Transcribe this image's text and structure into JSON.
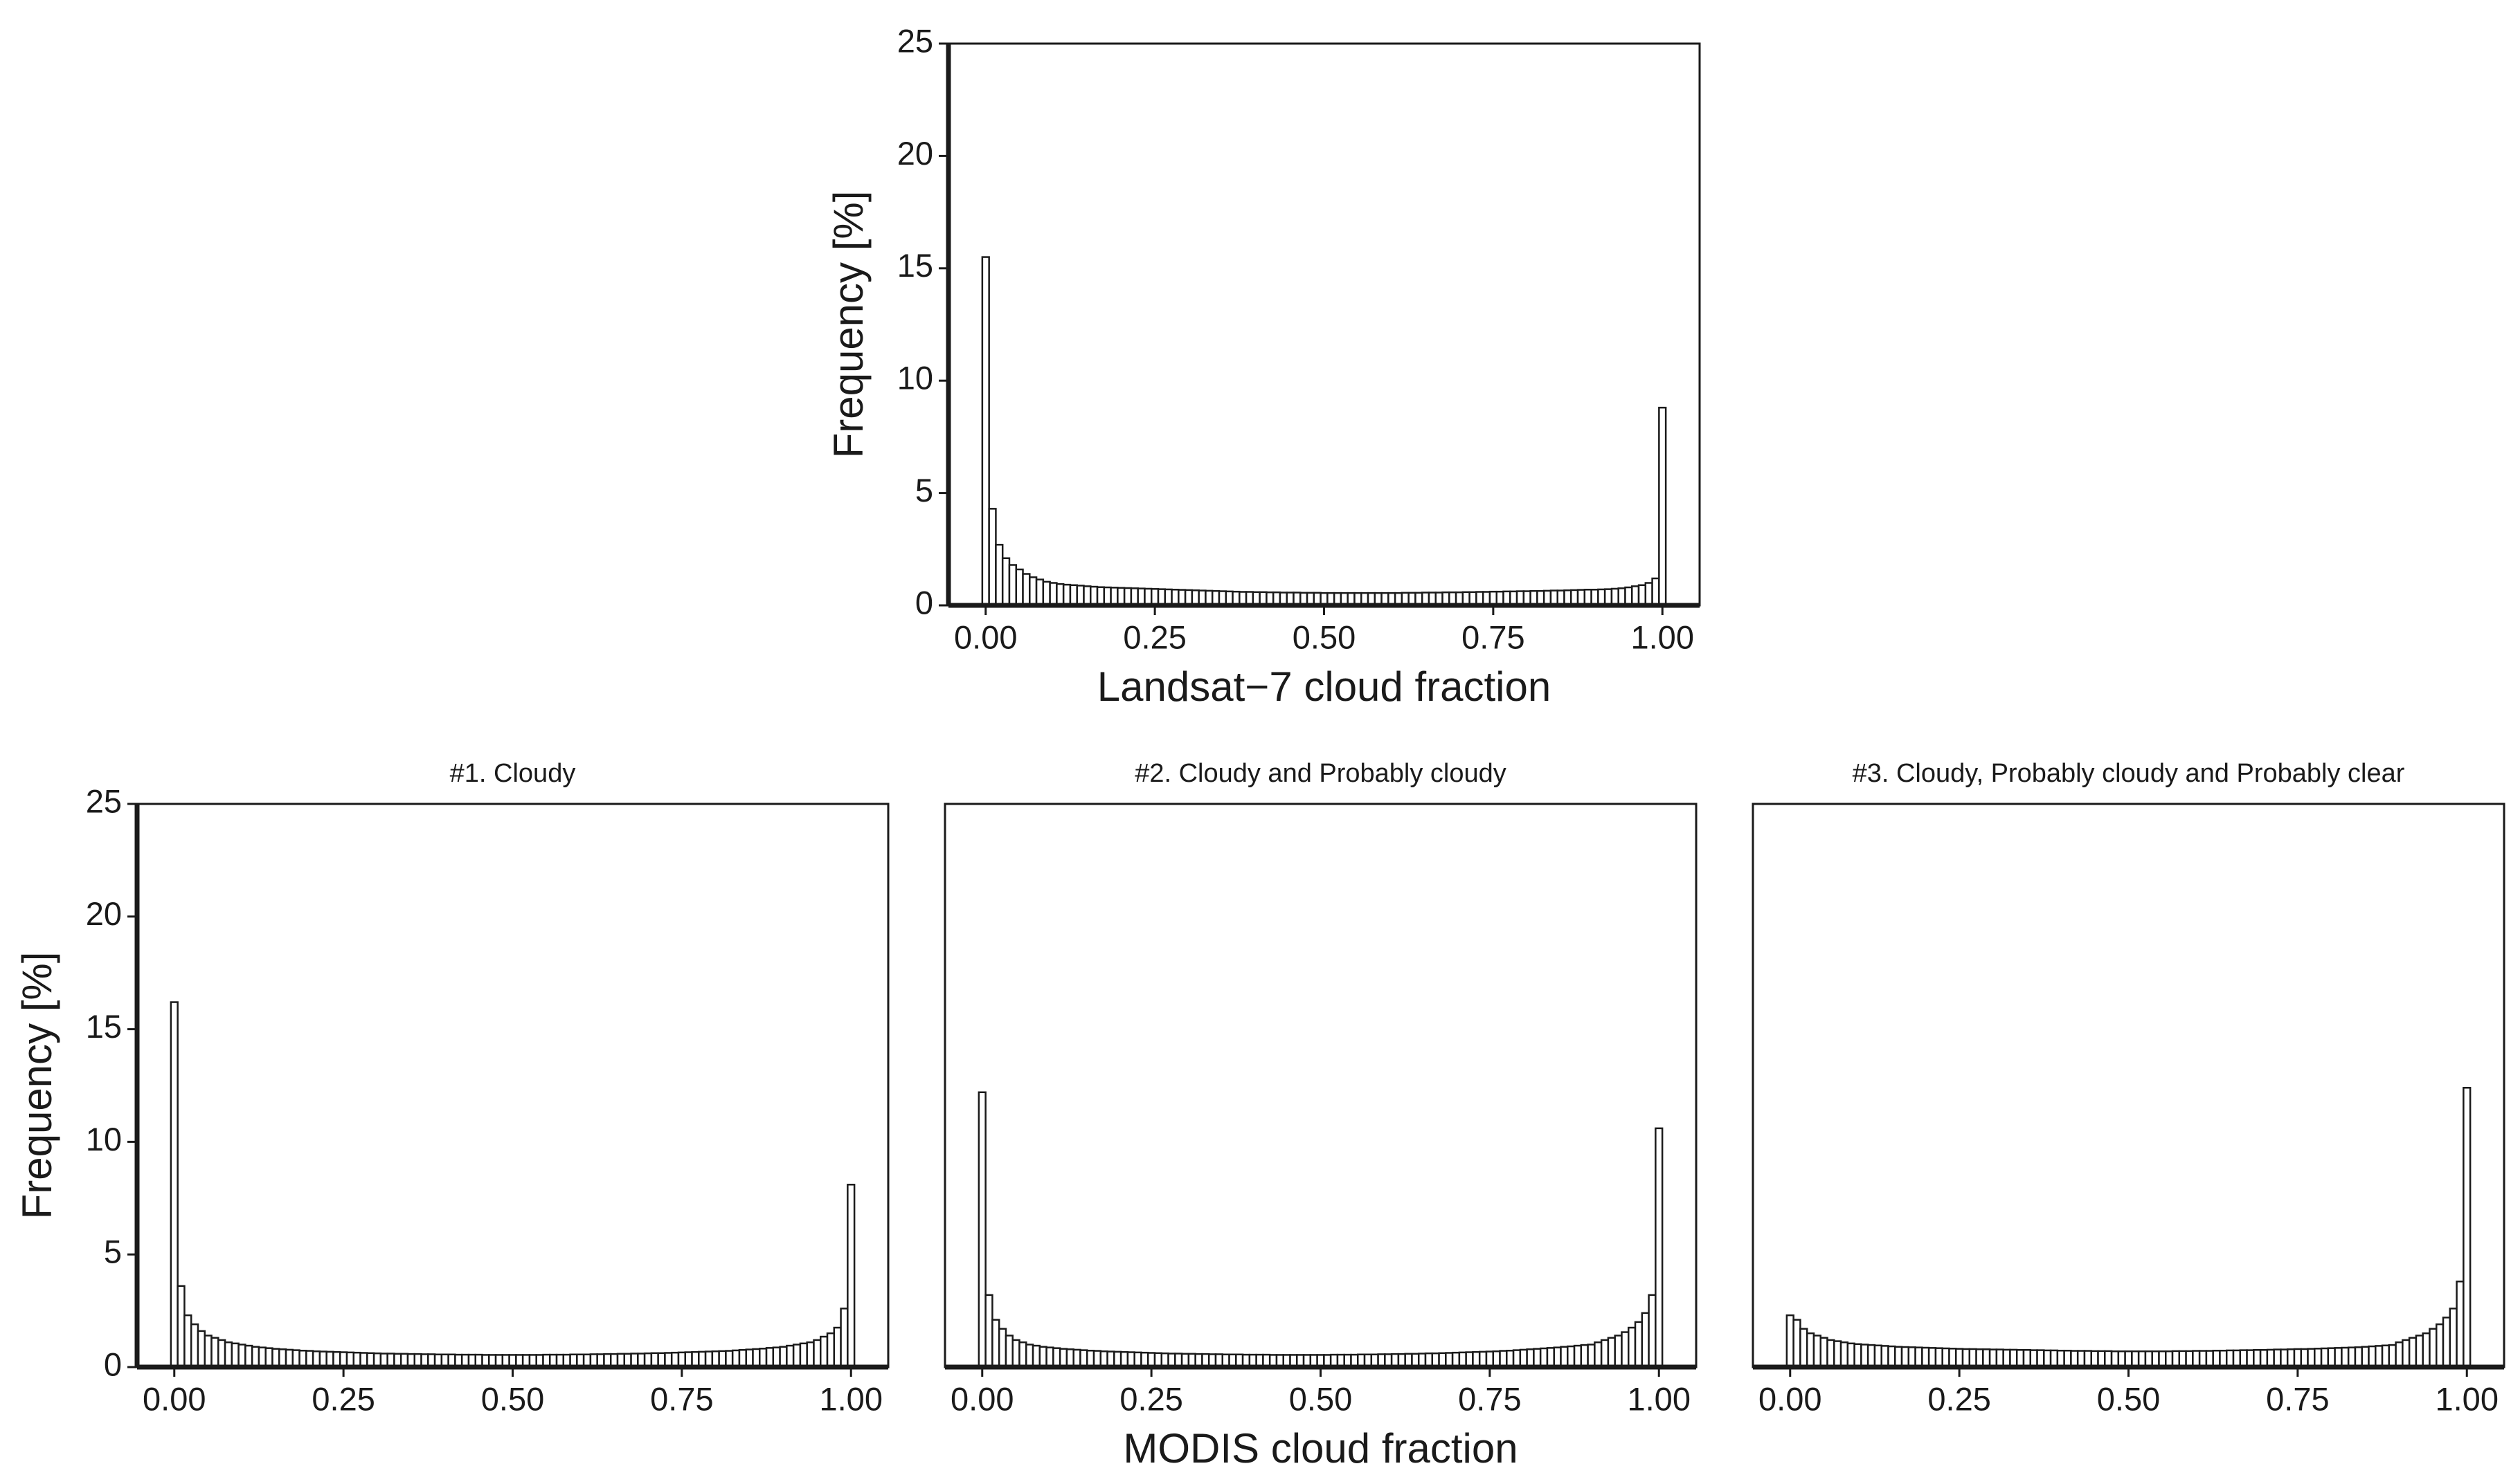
{
  "chart_data": [
    {
      "type": "histogram",
      "xlabel": "Landsat−7 cloud fraction",
      "ylabel": "Frequency [%]",
      "bins": [
        -0.005,
        0.005,
        0.015,
        0.025,
        0.035,
        0.045,
        0.055,
        0.065,
        0.075,
        0.085,
        0.095,
        0.105,
        0.115,
        0.125,
        0.135,
        0.145,
        0.155,
        0.165,
        0.175,
        0.185,
        0.195,
        0.205,
        0.215,
        0.225,
        0.235,
        0.245,
        0.255,
        0.265,
        0.275,
        0.285,
        0.295,
        0.305,
        0.315,
        0.325,
        0.335,
        0.345,
        0.355,
        0.365,
        0.375,
        0.385,
        0.395,
        0.405,
        0.415,
        0.425,
        0.435,
        0.445,
        0.455,
        0.465,
        0.475,
        0.485,
        0.495,
        0.505,
        0.515,
        0.525,
        0.535,
        0.545,
        0.555,
        0.565,
        0.575,
        0.585,
        0.595,
        0.605,
        0.615,
        0.625,
        0.635,
        0.645,
        0.655,
        0.665,
        0.675,
        0.685,
        0.695,
        0.705,
        0.715,
        0.725,
        0.735,
        0.745,
        0.755,
        0.765,
        0.775,
        0.785,
        0.795,
        0.805,
        0.815,
        0.825,
        0.835,
        0.845,
        0.855,
        0.865,
        0.875,
        0.885,
        0.895,
        0.905,
        0.915,
        0.925,
        0.935,
        0.945,
        0.955,
        0.965,
        0.975,
        0.985,
        0.995,
        1.005
      ],
      "values": [
        15.5,
        4.3,
        2.7,
        2.1,
        1.8,
        1.6,
        1.4,
        1.25,
        1.15,
        1.05,
        1.0,
        0.95,
        0.92,
        0.9,
        0.88,
        0.85,
        0.83,
        0.81,
        0.8,
        0.79,
        0.78,
        0.77,
        0.76,
        0.75,
        0.74,
        0.73,
        0.72,
        0.71,
        0.7,
        0.69,
        0.68,
        0.67,
        0.66,
        0.65,
        0.64,
        0.63,
        0.62,
        0.61,
        0.6,
        0.6,
        0.59,
        0.59,
        0.58,
        0.58,
        0.57,
        0.57,
        0.57,
        0.56,
        0.56,
        0.56,
        0.55,
        0.55,
        0.55,
        0.55,
        0.55,
        0.55,
        0.55,
        0.55,
        0.55,
        0.55,
        0.55,
        0.55,
        0.56,
        0.56,
        0.56,
        0.57,
        0.57,
        0.57,
        0.58,
        0.58,
        0.58,
        0.59,
        0.59,
        0.6,
        0.6,
        0.61,
        0.61,
        0.62,
        0.62,
        0.63,
        0.63,
        0.64,
        0.64,
        0.65,
        0.66,
        0.66,
        0.67,
        0.68,
        0.69,
        0.7,
        0.7,
        0.71,
        0.72,
        0.74,
        0.76,
        0.8,
        0.85,
        0.9,
        1.0,
        1.2,
        8.8
      ],
      "color": "#ffffff",
      "xlim": [
        -0.055,
        1.055
      ],
      "ylim": [
        0,
        25
      ],
      "xticks": [
        {
          "value": 0,
          "label": "0.00"
        },
        {
          "value": 0.25,
          "label": "0.25"
        },
        {
          "value": 0.5,
          "label": "0.50"
        },
        {
          "value": 0.75,
          "label": "0.75"
        },
        {
          "value": 1,
          "label": "1.00"
        }
      ],
      "yticks": [
        0,
        5,
        10,
        15,
        20,
        25
      ]
    },
    {
      "type": "histogram",
      "title": "#1. Cloudy",
      "ylabel": "Frequency [%]",
      "bins": [
        -0.005,
        0.005,
        0.015,
        0.025,
        0.035,
        0.045,
        0.055,
        0.065,
        0.075,
        0.085,
        0.095,
        0.105,
        0.115,
        0.125,
        0.135,
        0.145,
        0.155,
        0.165,
        0.175,
        0.185,
        0.195,
        0.205,
        0.215,
        0.225,
        0.235,
        0.245,
        0.255,
        0.265,
        0.275,
        0.285,
        0.295,
        0.305,
        0.315,
        0.325,
        0.335,
        0.345,
        0.355,
        0.365,
        0.375,
        0.385,
        0.395,
        0.405,
        0.415,
        0.425,
        0.435,
        0.445,
        0.455,
        0.465,
        0.475,
        0.485,
        0.495,
        0.505,
        0.515,
        0.525,
        0.535,
        0.545,
        0.555,
        0.565,
        0.575,
        0.585,
        0.595,
        0.605,
        0.615,
        0.625,
        0.635,
        0.645,
        0.655,
        0.665,
        0.675,
        0.685,
        0.695,
        0.705,
        0.715,
        0.725,
        0.735,
        0.745,
        0.755,
        0.765,
        0.775,
        0.785,
        0.795,
        0.805,
        0.815,
        0.825,
        0.835,
        0.845,
        0.855,
        0.865,
        0.875,
        0.885,
        0.895,
        0.905,
        0.915,
        0.925,
        0.935,
        0.945,
        0.955,
        0.965,
        0.975,
        0.985,
        0.995,
        1.005
      ],
      "values": [
        16.2,
        3.6,
        2.3,
        1.9,
        1.6,
        1.4,
        1.3,
        1.2,
        1.1,
        1.05,
        1.0,
        0.95,
        0.9,
        0.87,
        0.84,
        0.81,
        0.79,
        0.77,
        0.75,
        0.73,
        0.72,
        0.7,
        0.69,
        0.68,
        0.67,
        0.66,
        0.65,
        0.64,
        0.63,
        0.62,
        0.61,
        0.6,
        0.6,
        0.59,
        0.59,
        0.58,
        0.58,
        0.57,
        0.57,
        0.56,
        0.56,
        0.56,
        0.55,
        0.55,
        0.55,
        0.55,
        0.54,
        0.54,
        0.54,
        0.54,
        0.54,
        0.54,
        0.54,
        0.54,
        0.54,
        0.55,
        0.55,
        0.55,
        0.55,
        0.56,
        0.56,
        0.56,
        0.57,
        0.57,
        0.58,
        0.58,
        0.59,
        0.59,
        0.6,
        0.6,
        0.61,
        0.62,
        0.62,
        0.63,
        0.64,
        0.65,
        0.66,
        0.67,
        0.68,
        0.69,
        0.7,
        0.71,
        0.72,
        0.74,
        0.76,
        0.78,
        0.8,
        0.82,
        0.85,
        0.87,
        0.9,
        0.95,
        1.0,
        1.05,
        1.1,
        1.2,
        1.35,
        1.5,
        1.75,
        2.6,
        8.1
      ],
      "color": "#ffffff",
      "xlim": [
        -0.055,
        1.055
      ],
      "ylim": [
        0,
        25
      ],
      "xticks": [
        {
          "value": 0,
          "label": "0.00"
        },
        {
          "value": 0.25,
          "label": "0.25"
        },
        {
          "value": 0.5,
          "label": "0.50"
        },
        {
          "value": 0.75,
          "label": "0.75"
        },
        {
          "value": 1,
          "label": "1.00"
        }
      ],
      "yticks": [
        0,
        5,
        10,
        15,
        20,
        25
      ]
    },
    {
      "type": "histogram",
      "title": "#2. Cloudy and Probably cloudy",
      "xlabel": "MODIS cloud fraction",
      "bins": [
        -0.005,
        0.005,
        0.015,
        0.025,
        0.035,
        0.045,
        0.055,
        0.065,
        0.075,
        0.085,
        0.095,
        0.105,
        0.115,
        0.125,
        0.135,
        0.145,
        0.155,
        0.165,
        0.175,
        0.185,
        0.195,
        0.205,
        0.215,
        0.225,
        0.235,
        0.245,
        0.255,
        0.265,
        0.275,
        0.285,
        0.295,
        0.305,
        0.315,
        0.325,
        0.335,
        0.345,
        0.355,
        0.365,
        0.375,
        0.385,
        0.395,
        0.405,
        0.415,
        0.425,
        0.435,
        0.445,
        0.455,
        0.465,
        0.475,
        0.485,
        0.495,
        0.505,
        0.515,
        0.525,
        0.535,
        0.545,
        0.555,
        0.565,
        0.575,
        0.585,
        0.595,
        0.605,
        0.615,
        0.625,
        0.635,
        0.645,
        0.655,
        0.665,
        0.675,
        0.685,
        0.695,
        0.705,
        0.715,
        0.725,
        0.735,
        0.745,
        0.755,
        0.765,
        0.775,
        0.785,
        0.795,
        0.805,
        0.815,
        0.825,
        0.835,
        0.845,
        0.855,
        0.865,
        0.875,
        0.885,
        0.895,
        0.905,
        0.915,
        0.925,
        0.935,
        0.945,
        0.955,
        0.965,
        0.975,
        0.985,
        0.995,
        1.005
      ],
      "values": [
        12.2,
        3.2,
        2.1,
        1.7,
        1.4,
        1.2,
        1.1,
        1.0,
        0.95,
        0.9,
        0.87,
        0.84,
        0.81,
        0.79,
        0.77,
        0.75,
        0.73,
        0.72,
        0.7,
        0.69,
        0.68,
        0.67,
        0.66,
        0.65,
        0.64,
        0.63,
        0.62,
        0.61,
        0.6,
        0.6,
        0.59,
        0.59,
        0.58,
        0.58,
        0.57,
        0.57,
        0.56,
        0.56,
        0.56,
        0.55,
        0.55,
        0.55,
        0.55,
        0.54,
        0.54,
        0.54,
        0.54,
        0.54,
        0.54,
        0.54,
        0.54,
        0.54,
        0.55,
        0.55,
        0.55,
        0.55,
        0.56,
        0.56,
        0.56,
        0.57,
        0.57,
        0.58,
        0.58,
        0.59,
        0.59,
        0.6,
        0.61,
        0.61,
        0.62,
        0.63,
        0.64,
        0.65,
        0.66,
        0.67,
        0.68,
        0.69,
        0.7,
        0.72,
        0.73,
        0.75,
        0.77,
        0.79,
        0.81,
        0.83,
        0.85,
        0.87,
        0.9,
        0.92,
        0.95,
        0.98,
        1.0,
        1.1,
        1.2,
        1.3,
        1.4,
        1.55,
        1.75,
        2.0,
        2.4,
        3.2,
        10.6
      ],
      "color": "#ffffff",
      "xlim": [
        -0.055,
        1.055
      ],
      "ylim": [
        0,
        25
      ],
      "xticks": [
        {
          "value": 0,
          "label": "0.00"
        },
        {
          "value": 0.25,
          "label": "0.25"
        },
        {
          "value": 0.5,
          "label": "0.50"
        },
        {
          "value": 0.75,
          "label": "0.75"
        },
        {
          "value": 1,
          "label": "1.00"
        }
      ]
    },
    {
      "type": "histogram",
      "title": "#3. Cloudy, Probably cloudy and Probably clear",
      "bins": [
        -0.005,
        0.005,
        0.015,
        0.025,
        0.035,
        0.045,
        0.055,
        0.065,
        0.075,
        0.085,
        0.095,
        0.105,
        0.115,
        0.125,
        0.135,
        0.145,
        0.155,
        0.165,
        0.175,
        0.185,
        0.195,
        0.205,
        0.215,
        0.225,
        0.235,
        0.245,
        0.255,
        0.265,
        0.275,
        0.285,
        0.295,
        0.305,
        0.315,
        0.325,
        0.335,
        0.345,
        0.355,
        0.365,
        0.375,
        0.385,
        0.395,
        0.405,
        0.415,
        0.425,
        0.435,
        0.445,
        0.455,
        0.465,
        0.475,
        0.485,
        0.495,
        0.505,
        0.515,
        0.525,
        0.535,
        0.545,
        0.555,
        0.565,
        0.575,
        0.585,
        0.595,
        0.605,
        0.615,
        0.625,
        0.635,
        0.645,
        0.655,
        0.665,
        0.675,
        0.685,
        0.695,
        0.705,
        0.715,
        0.725,
        0.735,
        0.745,
        0.755,
        0.765,
        0.775,
        0.785,
        0.795,
        0.805,
        0.815,
        0.825,
        0.835,
        0.845,
        0.855,
        0.865,
        0.875,
        0.885,
        0.895,
        0.905,
        0.915,
        0.925,
        0.935,
        0.945,
        0.955,
        0.965,
        0.975,
        0.985,
        0.995,
        1.005
      ],
      "values": [
        2.3,
        2.1,
        1.7,
        1.5,
        1.4,
        1.3,
        1.2,
        1.15,
        1.1,
        1.05,
        1.02,
        1.0,
        0.98,
        0.96,
        0.94,
        0.92,
        0.9,
        0.89,
        0.88,
        0.87,
        0.86,
        0.85,
        0.84,
        0.83,
        0.82,
        0.81,
        0.8,
        0.8,
        0.79,
        0.79,
        0.78,
        0.78,
        0.77,
        0.77,
        0.76,
        0.76,
        0.75,
        0.75,
        0.74,
        0.74,
        0.73,
        0.73,
        0.72,
        0.72,
        0.72,
        0.71,
        0.71,
        0.71,
        0.7,
        0.7,
        0.7,
        0.7,
        0.7,
        0.7,
        0.7,
        0.7,
        0.7,
        0.71,
        0.71,
        0.71,
        0.72,
        0.72,
        0.72,
        0.73,
        0.73,
        0.74,
        0.74,
        0.75,
        0.75,
        0.76,
        0.76,
        0.77,
        0.78,
        0.78,
        0.79,
        0.8,
        0.8,
        0.81,
        0.82,
        0.83,
        0.84,
        0.85,
        0.86,
        0.87,
        0.88,
        0.9,
        0.92,
        0.94,
        0.96,
        0.98,
        1.1,
        1.2,
        1.3,
        1.4,
        1.5,
        1.7,
        1.9,
        2.2,
        2.6,
        3.8,
        12.4
      ],
      "color": "#ffffff",
      "xlim": [
        -0.055,
        1.055
      ],
      "ylim": [
        0,
        25
      ],
      "xticks": [
        {
          "value": 0,
          "label": "0.00"
        },
        {
          "value": 0.25,
          "label": "0.25"
        },
        {
          "value": 0.5,
          "label": "0.50"
        },
        {
          "value": 0.75,
          "label": "0.75"
        },
        {
          "value": 1,
          "label": "1.00"
        }
      ]
    }
  ]
}
